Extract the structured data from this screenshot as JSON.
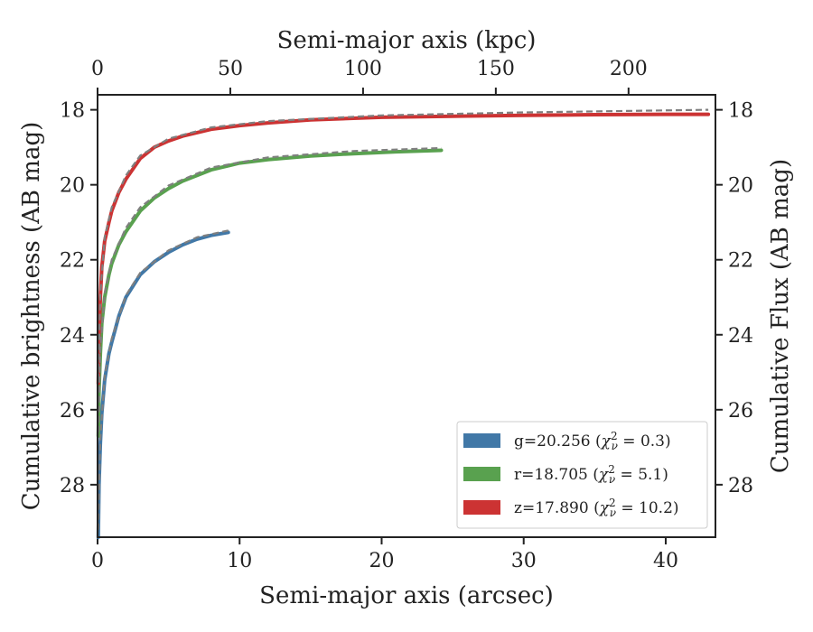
{
  "chart_data": {
    "type": "line",
    "xlabel": "Semi-major axis (arcsec)",
    "ylabel": "Cumulative brightness (AB mag)",
    "top_xlabel": "Semi-major axis (kpc)",
    "right_ylabel": "Cumulative Flux (AB mag)",
    "xlim": [
      0,
      43.5
    ],
    "ylim": [
      29.4,
      17.6
    ],
    "y_inverted": true,
    "x_ticks": [
      "0",
      "10",
      "20",
      "30",
      "40"
    ],
    "top_ticks": [
      "0",
      "50",
      "100",
      "150",
      "200"
    ],
    "top_tick_values": [
      0,
      50,
      100,
      150,
      200
    ],
    "kpc_per_arcsec": 5.35,
    "y_ticks": [
      "18",
      "20",
      "22",
      "24",
      "26",
      "28"
    ],
    "grid": false,
    "legend_position": "lower-right",
    "series": [
      {
        "name": "g=20.256",
        "chi2": "0.3",
        "color": "#4178a7",
        "x": [
          0.05,
          0.1,
          0.2,
          0.3,
          0.5,
          0.8,
          1.0,
          1.5,
          2.0,
          3.0,
          4.0,
          5.0,
          6.0,
          7.0,
          8.0,
          9.2
        ],
        "mag": [
          29.4,
          28.0,
          26.9,
          26.1,
          25.2,
          24.5,
          24.2,
          23.5,
          23.0,
          22.4,
          22.05,
          21.8,
          21.6,
          21.45,
          21.35,
          21.27
        ]
      },
      {
        "name": "r=18.705",
        "chi2": "5.1",
        "color": "#59a14f",
        "x": [
          0.05,
          0.1,
          0.2,
          0.3,
          0.5,
          0.8,
          1.0,
          1.5,
          2.0,
          3.0,
          4.0,
          5.0,
          6.0,
          8.0,
          10.0,
          12.0,
          15.0,
          18.0,
          21.0,
          24.2
        ],
        "mag": [
          26.7,
          25.5,
          24.5,
          23.7,
          23.0,
          22.4,
          22.1,
          21.6,
          21.25,
          20.7,
          20.35,
          20.1,
          19.9,
          19.6,
          19.42,
          19.33,
          19.23,
          19.17,
          19.12,
          19.08
        ]
      },
      {
        "name": "z=17.890",
        "chi2": "10.2",
        "color": "#cc3333",
        "x": [
          0.05,
          0.1,
          0.2,
          0.3,
          0.5,
          0.8,
          1.0,
          1.5,
          2.0,
          3.0,
          4.0,
          5.0,
          6.0,
          8.0,
          10.0,
          12.0,
          15.0,
          20.0,
          25.0,
          30.0,
          35.0,
          40.0,
          43.0
        ],
        "mag": [
          25.3,
          24.0,
          23.0,
          22.2,
          21.5,
          21.0,
          20.7,
          20.2,
          19.85,
          19.3,
          19.0,
          18.83,
          18.7,
          18.52,
          18.42,
          18.35,
          18.27,
          18.2,
          18.17,
          18.15,
          18.13,
          18.12,
          18.12
        ]
      }
    ],
    "model": {
      "name": "model fit",
      "color": "#7f7f7f",
      "curves": [
        {
          "x": [
            0.05,
            0.2,
            0.5,
            1.0,
            2.0,
            3.0,
            5.0,
            7.0,
            9.2
          ],
          "mag": [
            29.2,
            26.8,
            25.1,
            24.1,
            22.95,
            22.35,
            21.75,
            21.4,
            21.22
          ]
        },
        {
          "x": [
            0.05,
            0.2,
            0.5,
            1.0,
            2.0,
            3.0,
            5.0,
            8.0,
            12.0,
            18.0,
            24.2
          ],
          "mag": [
            26.6,
            24.4,
            22.9,
            22.0,
            21.15,
            20.6,
            20.02,
            19.54,
            19.27,
            19.1,
            19.02
          ]
        },
        {
          "x": [
            0.05,
            0.2,
            0.5,
            1.0,
            2.0,
            3.0,
            5.0,
            8.0,
            12.0,
            20.0,
            30.0,
            43.0
          ],
          "mag": [
            25.2,
            22.9,
            21.4,
            20.6,
            19.75,
            19.22,
            18.77,
            18.47,
            18.3,
            18.15,
            18.07,
            18.0
          ]
        }
      ]
    }
  }
}
